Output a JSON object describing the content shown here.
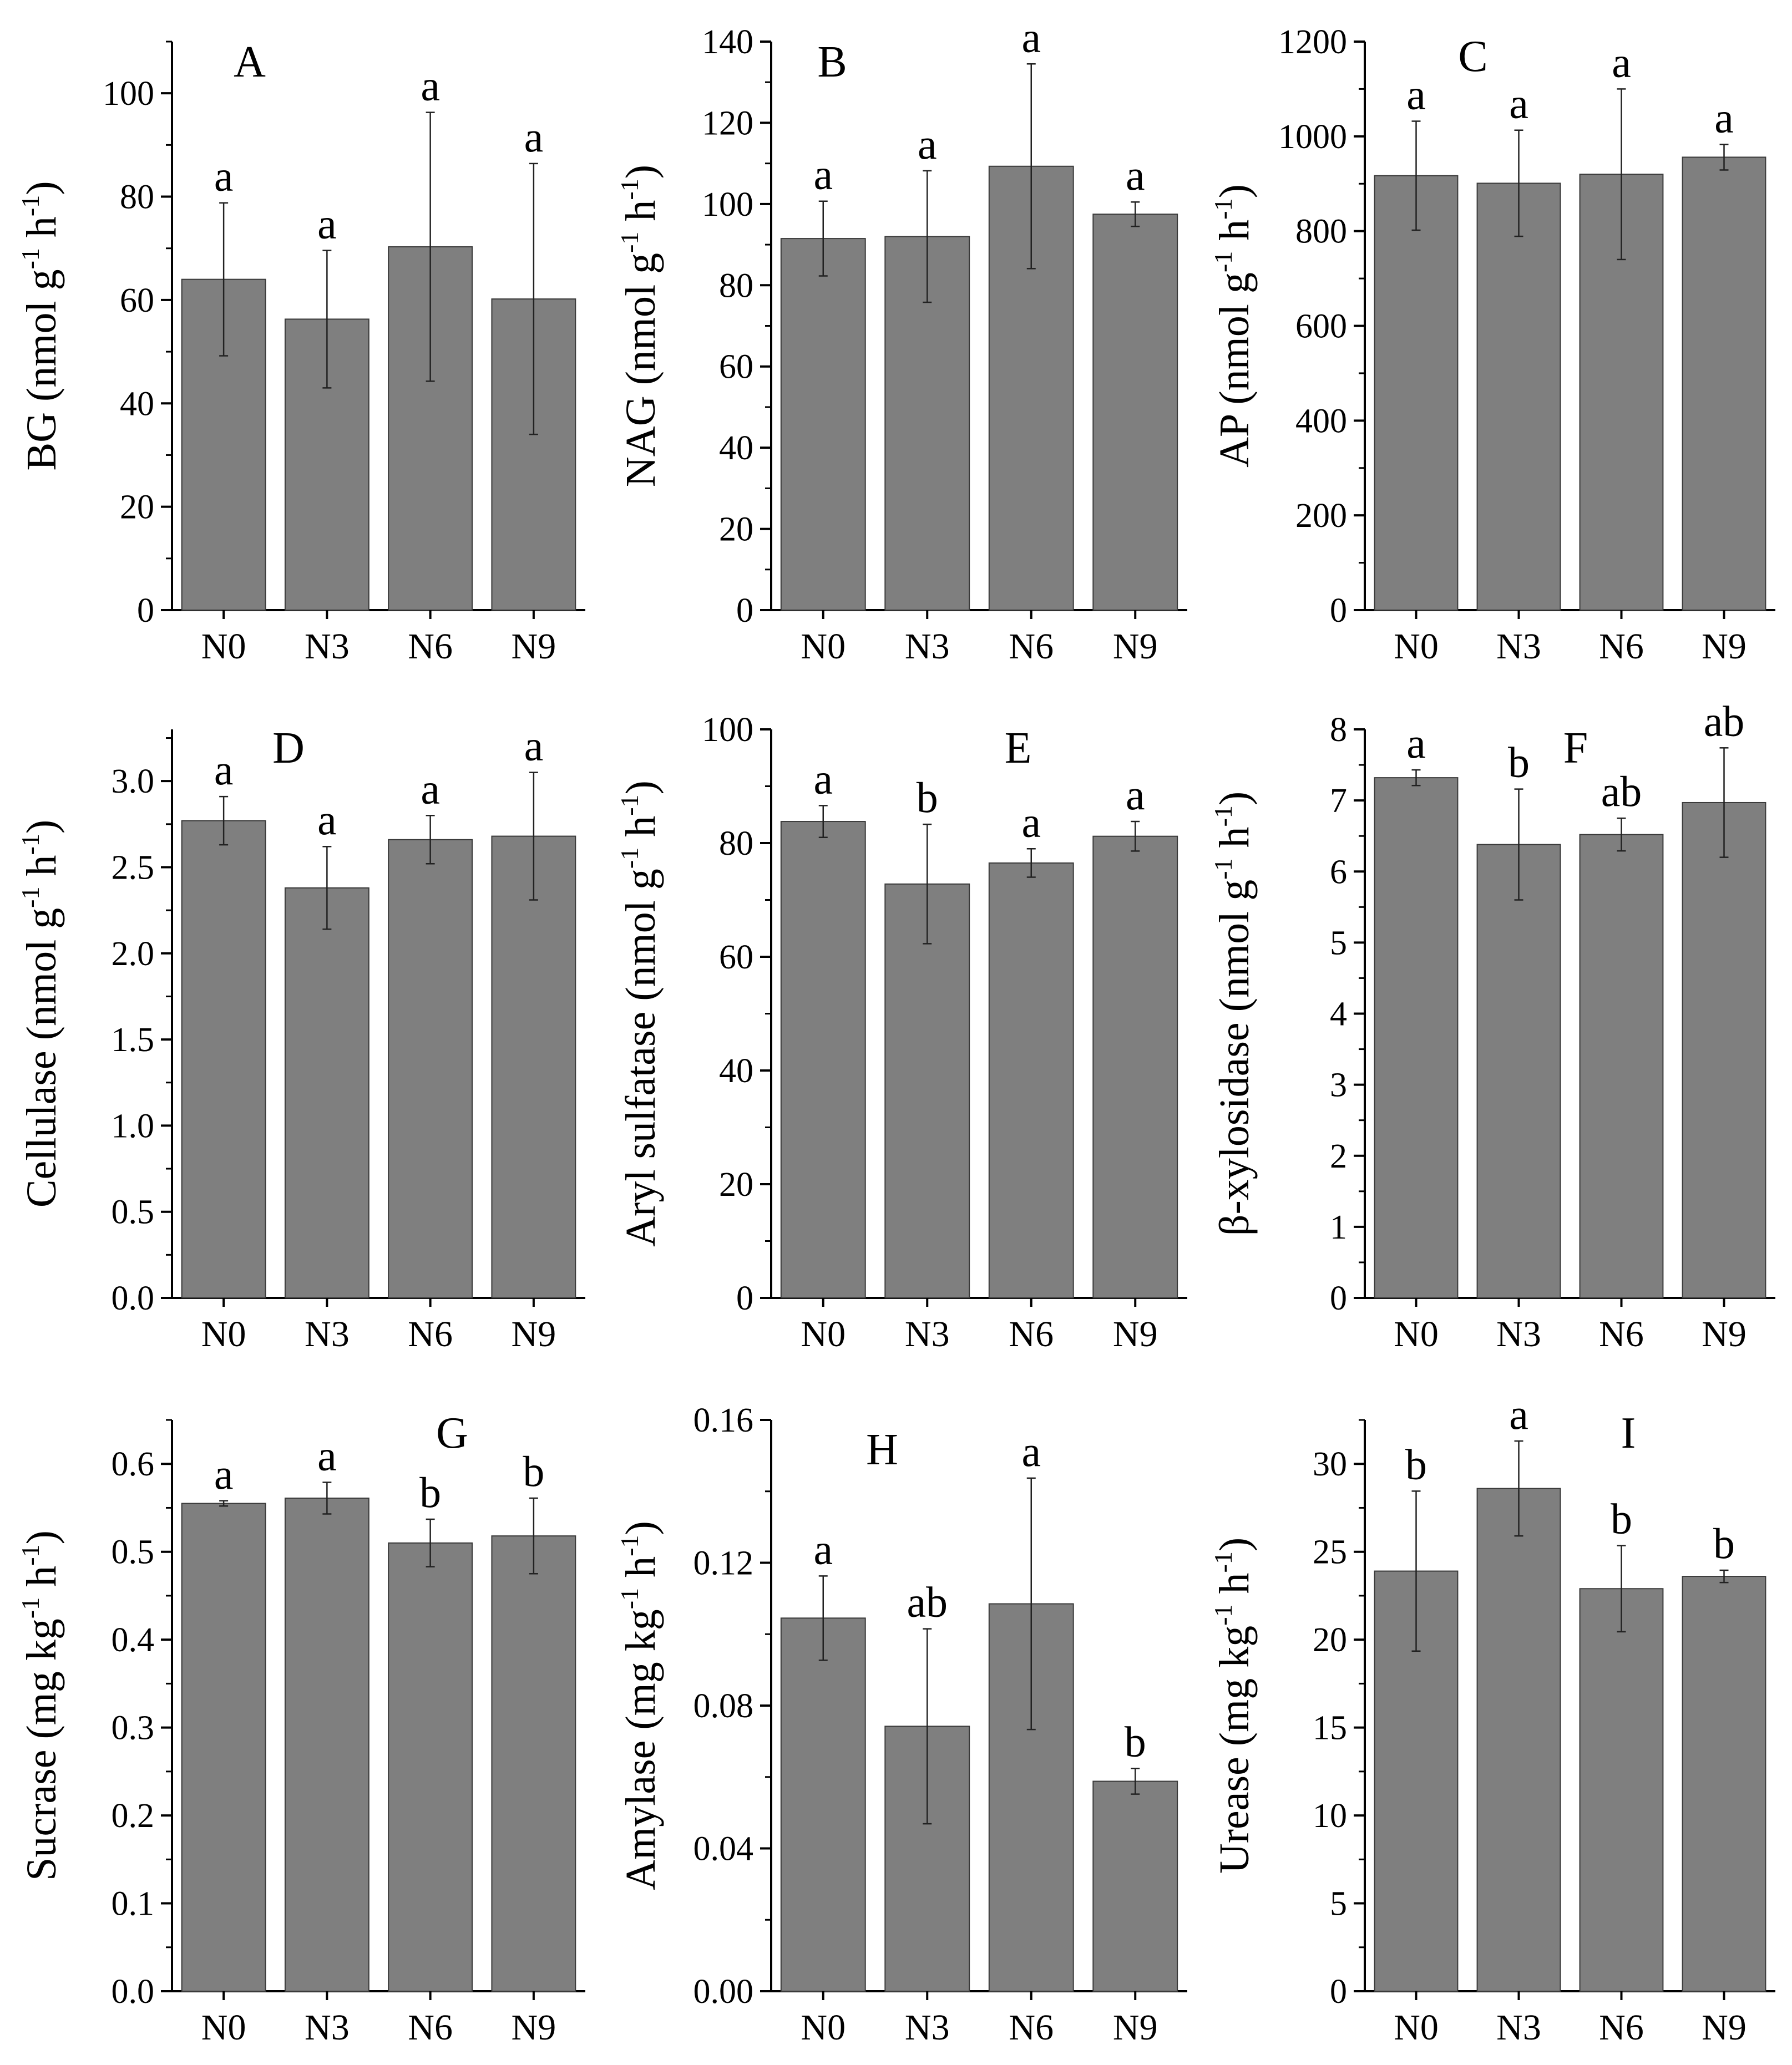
{
  "chart_data": [
    {
      "panel_label": "A",
      "type": "bar",
      "categories": [
        "N0",
        "N3",
        "N6",
        "N9"
      ],
      "values": [
        64,
        56.3,
        70.3,
        60.2
      ],
      "errors": [
        14.8,
        13.3,
        26,
        26.2
      ],
      "letters": [
        "a",
        "a",
        "a",
        "a"
      ],
      "ylabel_main": "BG (nmol g",
      "ylabel_mid": " h",
      "ylabel_end": ")",
      "ylabel_sup": "-1",
      "ylim": [
        0,
        110
      ],
      "yticks": [
        0,
        20,
        40,
        60,
        80,
        100
      ],
      "ytick_labels": [
        "0",
        "20",
        "40",
        "60",
        "80",
        "100"
      ]
    },
    {
      "panel_label": "B",
      "type": "bar",
      "categories": [
        "N0",
        "N3",
        "N6",
        "N9"
      ],
      "values": [
        91.5,
        92,
        109.3,
        97.5
      ],
      "errors": [
        9.2,
        16.2,
        25.2,
        3
      ],
      "letters": [
        "a",
        "a",
        "a",
        "a"
      ],
      "ylabel_main": "NAG (nmol g",
      "ylabel_mid": " h",
      "ylabel_end": ")",
      "ylabel_sup": "-1",
      "ylim": [
        0,
        140
      ],
      "yticks": [
        0,
        20,
        40,
        60,
        80,
        100,
        120,
        140
      ],
      "ytick_labels": [
        "0",
        "20",
        "40",
        "60",
        "80",
        "100",
        "120",
        "140"
      ]
    },
    {
      "panel_label": "C",
      "type": "bar",
      "categories": [
        "N0",
        "N3",
        "N6",
        "N9"
      ],
      "values": [
        917,
        901,
        920,
        956
      ],
      "errors": [
        115,
        112,
        180,
        27
      ],
      "letters": [
        "a",
        "a",
        "a",
        "a"
      ],
      "ylabel_main": "AP (nmol g",
      "ylabel_mid": " h",
      "ylabel_end": ")",
      "ylabel_sup": "-1",
      "ylim": [
        0,
        1200
      ],
      "yticks": [
        0,
        200,
        400,
        600,
        800,
        1000,
        1200
      ],
      "ytick_labels": [
        "0",
        "200",
        "400",
        "600",
        "800",
        "1000",
        "1200"
      ]
    },
    {
      "panel_label": "D",
      "type": "bar",
      "categories": [
        "N0",
        "N3",
        "N6",
        "N9"
      ],
      "values": [
        2.77,
        2.38,
        2.66,
        2.68
      ],
      "errors": [
        0.14,
        0.24,
        0.14,
        0.37
      ],
      "letters": [
        "a",
        "a",
        "a",
        "a"
      ],
      "ylabel_main": "Cellulase (nmol g",
      "ylabel_mid": " h",
      "ylabel_end": ")",
      "ylabel_sup": "-1",
      "ylim": [
        0,
        3.3
      ],
      "yticks": [
        0,
        0.5,
        1,
        1.5,
        2,
        2.5,
        3
      ],
      "ytick_labels": [
        "0.0",
        "0.5",
        "1.0",
        "1.5",
        "2.0",
        "2.5",
        "3.0"
      ]
    },
    {
      "panel_label": "E",
      "type": "bar",
      "categories": [
        "N0",
        "N3",
        "N6",
        "N9"
      ],
      "values": [
        83.8,
        72.8,
        76.5,
        81.2
      ],
      "errors": [
        2.8,
        10.5,
        2.5,
        2.6
      ],
      "letters": [
        "a",
        "b",
        "a",
        "a"
      ],
      "ylabel_main": "Aryl sulfatase (nmol g",
      "ylabel_mid": " h",
      "ylabel_end": ")",
      "ylabel_sup": "-1",
      "ylim": [
        0,
        100
      ],
      "yticks": [
        0,
        20,
        40,
        60,
        80,
        100
      ],
      "ytick_labels": [
        "0",
        "20",
        "40",
        "60",
        "80",
        "100"
      ]
    },
    {
      "panel_label": "F",
      "type": "bar",
      "categories": [
        "N0",
        "N3",
        "N6",
        "N9"
      ],
      "values": [
        7.32,
        6.38,
        6.52,
        6.97
      ],
      "errors": [
        0.11,
        0.78,
        0.23,
        0.77
      ],
      "letters": [
        "a",
        "b",
        "ab",
        "ab"
      ],
      "ylabel_main": "β-xylosidase (nmol g",
      "ylabel_mid": " h",
      "ylabel_end": ")",
      "ylabel_sup": "-1",
      "ylim": [
        0,
        8
      ],
      "yticks": [
        0,
        1,
        2,
        3,
        4,
        5,
        6,
        7,
        8
      ],
      "ytick_labels": [
        "0",
        "1",
        "2",
        "3",
        "4",
        "5",
        "6",
        "7",
        "8"
      ]
    },
    {
      "panel_label": "G",
      "type": "bar",
      "categories": [
        "N0",
        "N3",
        "N6",
        "N9"
      ],
      "values": [
        0.555,
        0.561,
        0.51,
        0.518
      ],
      "errors": [
        0.003,
        0.018,
        0.027,
        0.043
      ],
      "letters": [
        "a",
        "a",
        "b",
        "b"
      ],
      "ylabel_main": "Sucrase (mg kg",
      "ylabel_mid": " h",
      "ylabel_end": ")",
      "ylabel_sup": "-1",
      "ylim": [
        0,
        0.65
      ],
      "yticks": [
        0,
        0.1,
        0.2,
        0.3,
        0.4,
        0.5,
        0.6
      ],
      "ytick_labels": [
        "0.0",
        "0.1",
        "0.2",
        "0.3",
        "0.4",
        "0.5",
        "0.6"
      ]
    },
    {
      "panel_label": "H",
      "type": "bar",
      "categories": [
        "N0",
        "N3",
        "N6",
        "N9"
      ],
      "values": [
        0.1045,
        0.0742,
        0.1085,
        0.0588
      ],
      "errors": [
        0.0118,
        0.0273,
        0.0352,
        0.0036
      ],
      "letters": [
        "a",
        "ab",
        "a",
        "b"
      ],
      "ylabel_main": "Amylase (mg kg",
      "ylabel_mid": " h",
      "ylabel_end": ")",
      "ylabel_sup": "-1",
      "ylim": [
        0,
        0.16
      ],
      "yticks": [
        0,
        0.04,
        0.08,
        0.12,
        0.16
      ],
      "ytick_labels": [
        "0.00",
        "0.04",
        "0.08",
        "0.12",
        "0.16"
      ]
    },
    {
      "panel_label": "I",
      "type": "bar",
      "categories": [
        "N0",
        "N3",
        "N6",
        "N9"
      ],
      "values": [
        23.9,
        28.6,
        22.9,
        23.6
      ],
      "errors": [
        4.55,
        2.7,
        2.45,
        0.35
      ],
      "letters": [
        "b",
        "a",
        "b",
        "b"
      ],
      "ylabel_main": "Urease (mg kg",
      "ylabel_mid": " h",
      "ylabel_end": ")",
      "ylabel_sup": "-1",
      "ylim": [
        0,
        32.5
      ],
      "yticks": [
        0,
        5,
        10,
        15,
        20,
        25,
        30
      ],
      "ytick_labels": [
        "0",
        "5",
        "10",
        "15",
        "20",
        "25",
        "30"
      ]
    }
  ]
}
